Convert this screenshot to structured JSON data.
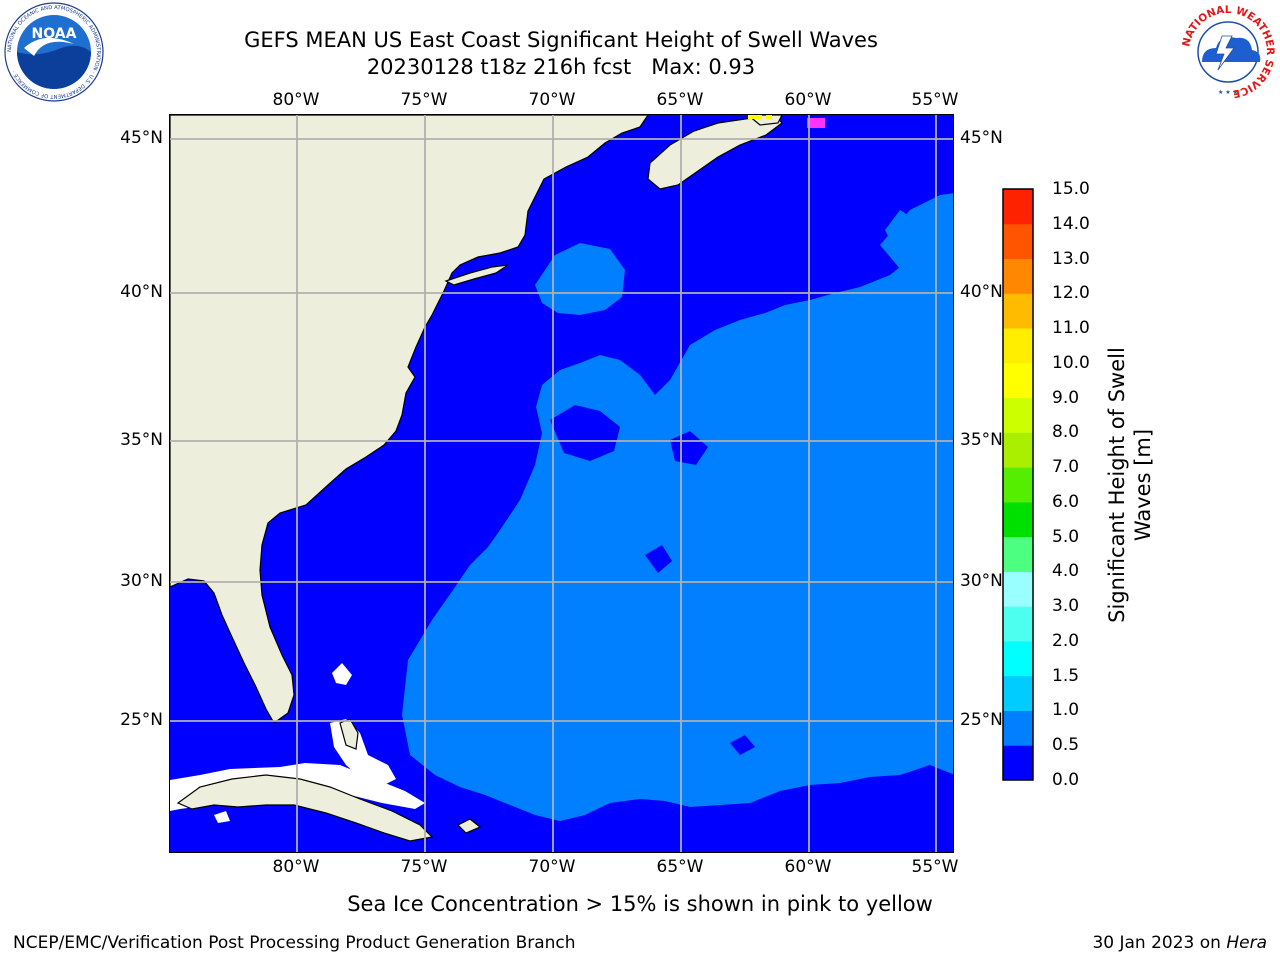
{
  "title": {
    "line1": "GEFS MEAN US East Coast Significant Height of Swell Waves",
    "line2": "20230128 t18z 216h fcst   Max: 0.93"
  },
  "map": {
    "lon_labels": [
      "80°W",
      "75°W",
      "70°W",
      "65°W",
      "60°W",
      "55°W"
    ],
    "lat_labels": [
      "45°N",
      "40°N",
      "35°N",
      "30°N",
      "25°N"
    ],
    "colors": {
      "land": "#eeeedc",
      "ocean_low": "#0000ff",
      "ocean_mid": "#0080ff",
      "ice_mask": "#ffffff",
      "grid": "#b0b0b0",
      "coastline": "#000000",
      "sea_ice_pink": "#ff33ff",
      "sea_ice_yellow": "#ffff00"
    }
  },
  "chart_data": {
    "type": "heatmap",
    "title": "GEFS MEAN US East Coast Significant Height of Swell Waves",
    "subtitle": "20230128 t18z 216h fcst   Max: 0.93",
    "max_value": 0.93,
    "x_ticks": [
      "80°W",
      "75°W",
      "70°W",
      "65°W",
      "60°W",
      "55°W"
    ],
    "y_ticks": [
      "45°N",
      "40°N",
      "35°N",
      "30°N",
      "25°N"
    ],
    "colorbar": {
      "label": "Significant Height of Swell Waves [m]",
      "range": [
        0.0,
        15.0
      ],
      "ticks": [
        "0.0",
        "0.5",
        "1.0",
        "1.5",
        "2.0",
        "3.0",
        "4.0",
        "5.0",
        "6.0",
        "7.0",
        "8.0",
        "9.0",
        "10.0",
        "11.0",
        "12.0",
        "13.0",
        "14.0",
        "15.0"
      ],
      "colors": [
        "#0000ff",
        "#0080ff",
        "#00ccff",
        "#00ffff",
        "#4dffee",
        "#99ffff",
        "#4dff80",
        "#00e000",
        "#55ee00",
        "#aaee00",
        "#ccff00",
        "#ffff00",
        "#ffee00",
        "#ffbb00",
        "#ff8800",
        "#ff5500",
        "#ff2200",
        "#ff0000"
      ]
    }
  },
  "footnote": "Sea Ice Concentration > 15% is shown in pink to yellow",
  "credit": "NCEP/EMC/Verification Post Processing Product Generation Branch",
  "date_run": {
    "date": "30 Jan 2023 on ",
    "host": "Hera"
  },
  "logos": {
    "noaa_text": "NOAA",
    "noaa_ring": "NATIONAL OCEANIC AND ATMOSPHERIC ADMINISTRATION · U.S. DEPARTMENT OF COMMERCE ·",
    "nws_ring": "NATIONAL WEATHER SERVICE"
  }
}
